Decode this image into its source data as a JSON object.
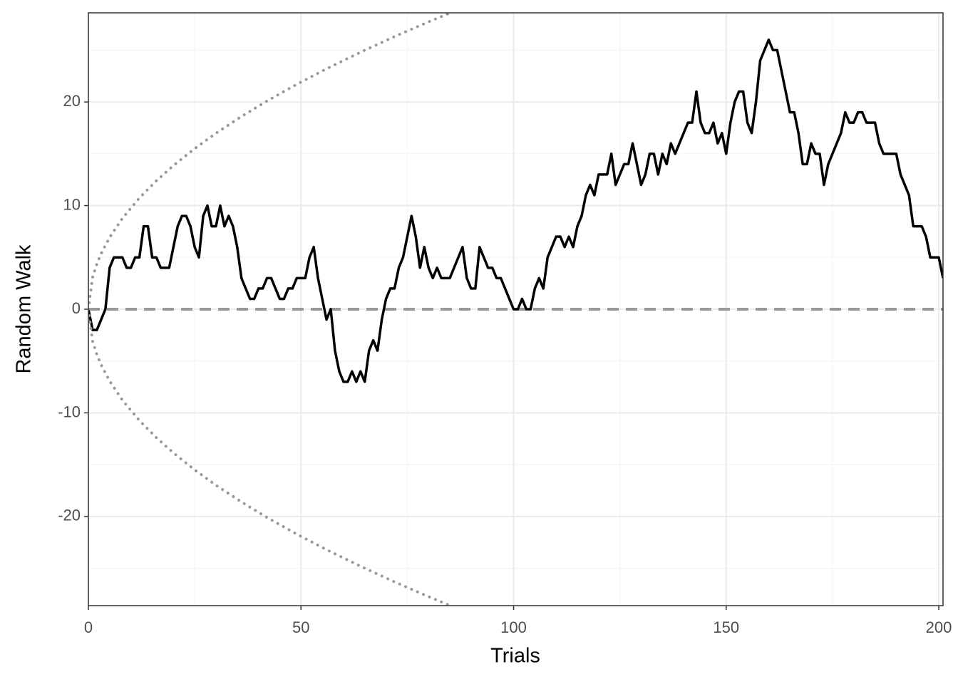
{
  "chart_data": {
    "type": "line",
    "xlabel": "Trials",
    "ylabel": "Random Walk",
    "xlim": [
      0,
      201
    ],
    "ylim": [
      -28.6,
      28.6
    ],
    "xticks": [
      0,
      50,
      100,
      150,
      200
    ],
    "yticks": [
      -20,
      -10,
      0,
      10,
      20
    ],
    "minor_xticks": [
      25,
      75,
      125,
      175
    ],
    "minor_yticks": [
      -25,
      -15,
      -5,
      5,
      15,
      25
    ],
    "grid": true,
    "reference_line": {
      "value": 0,
      "color": "#999999"
    },
    "x": [
      0,
      1,
      2,
      3,
      4,
      5,
      6,
      7,
      8,
      9,
      10,
      11,
      12,
      13,
      14,
      15,
      16,
      17,
      18,
      19,
      20,
      21,
      22,
      23,
      24,
      25,
      26,
      27,
      28,
      29,
      30,
      31,
      32,
      33,
      34,
      35,
      36,
      37,
      38,
      39,
      40,
      41,
      42,
      43,
      44,
      45,
      46,
      47,
      48,
      49,
      50,
      51,
      52,
      53,
      54,
      55,
      56,
      57,
      58,
      59,
      60,
      61,
      62,
      63,
      64,
      65,
      66,
      67,
      68,
      69,
      70,
      71,
      72,
      73,
      74,
      75,
      76,
      77,
      78,
      79,
      80,
      81,
      82,
      83,
      84,
      85,
      86,
      87,
      88,
      89,
      90,
      91,
      92,
      93,
      94,
      95,
      96,
      97,
      98,
      99,
      100,
      101,
      102,
      103,
      104,
      105,
      106,
      107,
      108,
      109,
      110,
      111,
      112,
      113,
      114,
      115,
      116,
      117,
      118,
      119,
      120,
      121,
      122,
      123,
      124,
      125,
      126,
      127,
      128,
      129,
      130,
      131,
      132,
      133,
      134,
      135,
      136,
      137,
      138,
      139,
      140,
      141,
      142,
      143,
      144,
      145,
      146,
      147,
      148,
      149,
      150,
      151,
      152,
      153,
      154,
      155,
      156,
      157,
      158,
      159,
      160,
      161,
      162,
      163,
      164,
      165,
      166,
      167,
      168,
      169,
      170,
      171,
      172,
      173,
      174,
      175,
      176,
      177,
      178,
      179,
      180,
      181,
      182,
      183,
      184,
      185,
      186,
      187,
      188,
      189,
      190,
      191,
      192,
      193,
      194,
      195,
      196,
      197,
      198,
      199,
      200,
      201
    ],
    "series": [
      {
        "color": "#000000",
        "style": "solid",
        "values": [
          0,
          -2,
          -2,
          -1,
          0,
          4,
          5,
          5,
          5,
          4,
          4,
          5,
          5,
          8,
          8,
          5,
          5,
          4,
          4,
          4,
          6,
          8,
          9,
          9,
          8,
          6,
          5,
          9,
          10,
          8,
          8,
          10,
          8,
          9,
          8,
          6,
          3,
          2,
          1,
          1,
          2,
          2,
          3,
          3,
          2,
          1,
          1,
          2,
          2,
          3,
          3,
          3,
          5,
          6,
          3,
          1,
          -1,
          0,
          -4,
          -6,
          -7,
          -7,
          -6,
          -7,
          -6,
          -7,
          -4,
          -3,
          -4,
          -1,
          1,
          2,
          2,
          4,
          5,
          7,
          9,
          7,
          4,
          6,
          4,
          3,
          4,
          3,
          3,
          3,
          4,
          5,
          6,
          3,
          2,
          2,
          6,
          5,
          4,
          4,
          3,
          3,
          2,
          1,
          0,
          0,
          1,
          0,
          0,
          2,
          3,
          2,
          5,
          6,
          7,
          7,
          6,
          7,
          6,
          8,
          9,
          11,
          12,
          11,
          13,
          13,
          13,
          15,
          12,
          13,
          14,
          14,
          16,
          14,
          12,
          13,
          15,
          15,
          13,
          15,
          14,
          16,
          15,
          16,
          17,
          18,
          18,
          21,
          18,
          17,
          17,
          18,
          16,
          17,
          15,
          18,
          20,
          21,
          21,
          18,
          17,
          20,
          24,
          25,
          26,
          25,
          25,
          23,
          21,
          19,
          19,
          17,
          14,
          14,
          16,
          15,
          15,
          12,
          14,
          15,
          16,
          17,
          19,
          18,
          18,
          19,
          19,
          18,
          18,
          18,
          16,
          15,
          15,
          15,
          15,
          13,
          12,
          11,
          8,
          8,
          8,
          7,
          5,
          5,
          5,
          3
        ]
      },
      {
        "color": "#999999",
        "style": "dotted",
        "x": [
          0,
          1,
          2,
          3,
          5,
          8,
          12,
          16,
          20,
          25,
          30,
          36,
          42,
          49,
          56,
          64,
          72,
          80,
          85
        ],
        "values": [
          0,
          3.1,
          4.38,
          5.37,
          6.93,
          8.77,
          10.74,
          12.4,
          13.86,
          15.5,
          16.98,
          18.6,
          20.09,
          21.7,
          23.2,
          24.8,
          26.31,
          27.73,
          28.58
        ]
      },
      {
        "color": "#999999",
        "style": "dotted",
        "x": [
          0,
          1,
          2,
          3,
          5,
          8,
          12,
          16,
          20,
          25,
          30,
          36,
          42,
          49,
          56,
          64,
          72,
          80,
          85
        ],
        "values": [
          0,
          -3.1,
          -4.38,
          -5.37,
          -6.93,
          -8.77,
          -10.74,
          -12.4,
          -13.86,
          -15.5,
          -16.98,
          -18.6,
          -20.09,
          -21.7,
          -23.2,
          -24.8,
          -26.31,
          -27.73,
          -28.58
        ]
      }
    ]
  }
}
